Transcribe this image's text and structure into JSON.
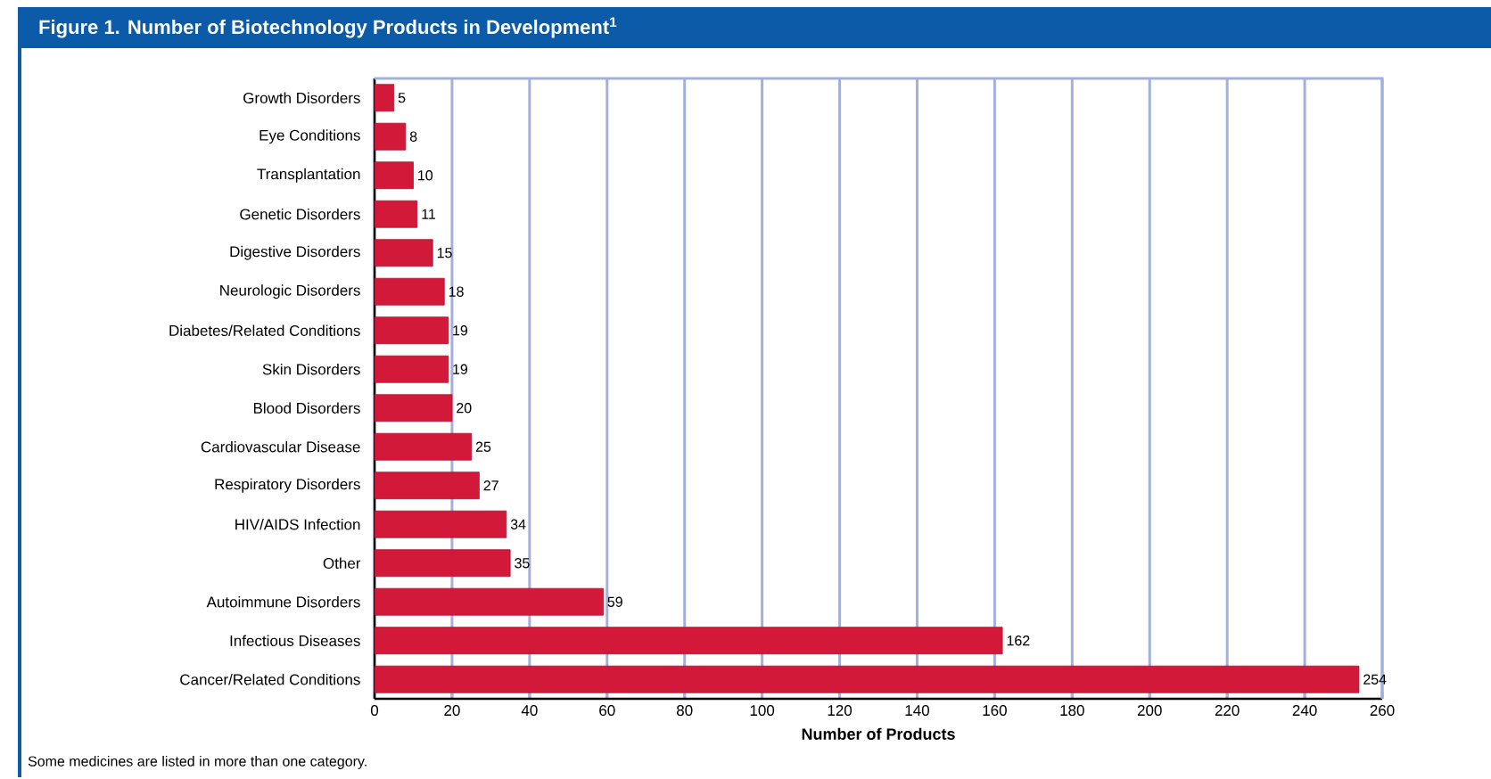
{
  "chart_data": {
    "type": "bar",
    "orientation": "horizontal",
    "title": "Figure 1. Number of Biotechnology Products in Development$^{1}$",
    "xlabel": "Number of Products",
    "categories": [
      "Growth Disorders",
      "Eye Conditions",
      "Transplantation",
      "Genetic Disorders",
      "Digestive Disorders",
      "Neurologic Disorders",
      "Diabetes/Related Conditions",
      "Skin Disorders",
      "Blood Disorders",
      "Cardiovascular Disease",
      "Respiratory Disorders",
      "HIV/AIDS Infection",
      "Other",
      "Autoimmune Disorders",
      "Infectious Diseases",
      "Cancer/Related Conditions"
    ],
    "values": [
      5,
      8,
      10,
      11,
      15,
      18,
      19,
      19,
      20,
      25,
      27,
      34,
      35,
      59,
      162,
      254
    ],
    "color": "#d2193a",
    "xlim": [
      0,
      260
    ],
    "xticks": [
      0,
      20,
      40,
      60,
      80,
      100,
      120,
      140,
      160,
      180,
      200,
      220,
      240,
      260
    ],
    "grid": "x",
    "data_labels": true,
    "annotations": [
      "Some medicines are listed in more than one category."
    ]
  }
}
